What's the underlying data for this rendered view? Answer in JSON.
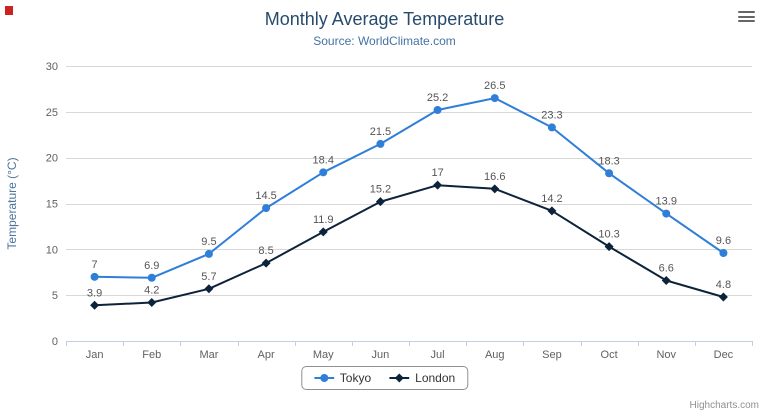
{
  "chart_data": {
    "type": "line",
    "title": "Monthly Average Temperature",
    "subtitle": "Source: WorldClimate.com",
    "categories": [
      "Jan",
      "Feb",
      "Mar",
      "Apr",
      "May",
      "Jun",
      "Jul",
      "Aug",
      "Sep",
      "Oct",
      "Nov",
      "Dec"
    ],
    "series": [
      {
        "name": "Tokyo",
        "marker": "circle",
        "color": "#2f7ed8",
        "values": [
          7,
          6.9,
          9.5,
          14.5,
          18.4,
          21.5,
          25.2,
          26.5,
          23.3,
          18.3,
          13.9,
          9.6
        ]
      },
      {
        "name": "London",
        "marker": "diamond",
        "color": "#0d233a",
        "values": [
          3.9,
          4.2,
          5.7,
          8.5,
          11.9,
          15.2,
          17,
          16.6,
          14.2,
          10.3,
          6.6,
          4.8
        ]
      }
    ],
    "xlabel": "",
    "ylabel": "Temperature (°C)",
    "ylim": [
      0,
      30
    ],
    "yticks": [
      0,
      5,
      10,
      15,
      20,
      25,
      30
    ],
    "grid": true,
    "legend_position": "bottom",
    "data_labels_enabled": true
  },
  "credits": "Highcharts.com",
  "colors": {
    "title": "#274b6d",
    "subtitle": "#4572a7",
    "axis_labels": "#606060",
    "axis_title": "#4d759e",
    "grid_line": "#d8d8d8",
    "axis_line": "#c0d0e0",
    "data_label": "#555555",
    "legend_border": "#909090",
    "credits": "#909090"
  },
  "export_menu": {
    "icon": "hamburger-icon"
  }
}
